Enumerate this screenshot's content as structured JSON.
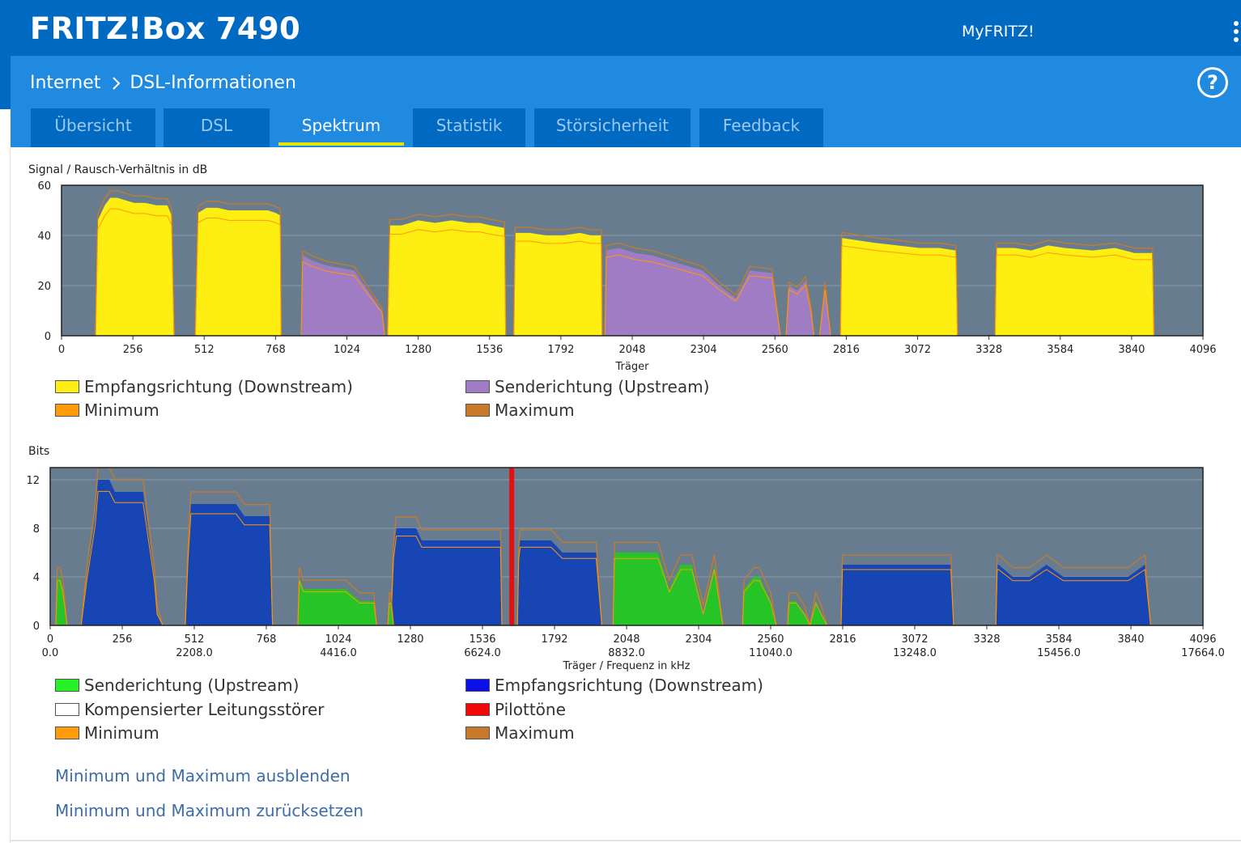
{
  "header": {
    "brand": "FRITZ!Box 7490",
    "myfritz": "MyFRITZ!",
    "menu_icon": "kebab-menu-icon"
  },
  "breadcrumb": {
    "parent": "Internet",
    "current": "DSL-Informationen",
    "help": "?"
  },
  "tabs": [
    {
      "label": "Übersicht",
      "active": false
    },
    {
      "label": "DSL",
      "active": false
    },
    {
      "label": "Spektrum",
      "active": true
    },
    {
      "label": "Statistik",
      "active": false
    },
    {
      "label": "Störsicherheit",
      "active": false
    },
    {
      "label": "Feedback",
      "active": false
    }
  ],
  "colors": {
    "header": "#0069c2",
    "panel": "#1f8ae0",
    "plot_bg": "#687c90",
    "downstream_snr": "#ffee12",
    "upstream_snr": "#a07cc4",
    "bits_upstream": "#26c426",
    "bits_downstream": "#1845b4",
    "pilot": "#e60f0f",
    "min": "#ff9a08",
    "max": "#c87a2a",
    "link": "#3d6ca8"
  },
  "chart_data": [
    {
      "type": "area",
      "title": "Signal / Rausch-Verhältnis in dB",
      "xlabel": "Träger",
      "xlim": [
        0,
        4096
      ],
      "ylim": [
        0,
        60
      ],
      "xticks": [
        "0",
        "256",
        "512",
        "768",
        "1024",
        "1280",
        "1536",
        "1792",
        "2048",
        "2304",
        "2560",
        "2816",
        "3072",
        "3328",
        "3584",
        "3840",
        "4096"
      ],
      "yticks": [
        "0",
        "20",
        "40",
        "60"
      ],
      "series": [
        {
          "name": "Empfangsrichtung (Downstream)",
          "bands": [
            {
              "x": [
                122,
                130,
                155,
                175,
                200,
                230,
                260,
                300,
                340,
                380,
                395,
                400,
                404
              ],
              "y": [
                0,
                46,
                52,
                55,
                55,
                54,
                53,
                53,
                52,
                52,
                48,
                20,
                0
              ]
            },
            {
              "x": [
                480,
                490,
                520,
                560,
                600,
                640,
                700,
                740,
                768,
                785,
                788
              ],
              "y": [
                0,
                49,
                51,
                51,
                50,
                50,
                50,
                50,
                49,
                48,
                0
              ]
            },
            {
              "x": [
                1170,
                1178,
                1220,
                1280,
                1340,
                1400,
                1460,
                1500,
                1540,
                1590,
                1594
              ],
              "y": [
                0,
                44,
                44,
                46,
                45,
                46,
                45,
                45,
                44,
                43,
                0
              ]
            },
            {
              "x": [
                1623,
                1628,
                1680,
                1740,
                1800,
                1860,
                1900,
                1937,
                1940
              ],
              "y": [
                0,
                41,
                41,
                40,
                40,
                41,
                40,
                40,
                0
              ]
            },
            {
              "x": [
                2795,
                2800,
                2860,
                2920,
                3000,
                3080,
                3150,
                3210,
                3215
              ],
              "y": [
                0,
                39,
                38,
                37,
                36,
                35,
                35,
                34,
                0
              ]
            },
            {
              "x": [
                3350,
                3355,
                3420,
                3480,
                3540,
                3600,
                3700,
                3780,
                3850,
                3915,
                3920
              ],
              "y": [
                0,
                35,
                35,
                34,
                36,
                35,
                34,
                35,
                33,
                33,
                0
              ]
            }
          ]
        },
        {
          "name": "Senderichtung (Upstream)",
          "bands": [
            {
              "x": [
                860,
                865,
                900,
                950,
                1000,
                1050,
                1100,
                1150,
                1160
              ],
              "y": [
                0,
                32,
                30,
                28,
                27,
                26,
                18,
                10,
                0
              ]
            },
            {
              "x": [
                1950,
                1955,
                2000,
                2060,
                2120,
                2180,
                2240,
                2300,
                2360,
                2420,
                2470,
                2550,
                2580
              ],
              "y": [
                0,
                34,
                35,
                33,
                32,
                30,
                28,
                26,
                20,
                15,
                26,
                25,
                0
              ]
            },
            {
              "x": [
                2600,
                2610,
                2640,
                2670,
                2690,
                2700,
                2720,
                2740,
                2760
              ],
              "y": [
                0,
                20,
                18,
                22,
                10,
                0,
                0,
                20,
                0
              ]
            }
          ]
        }
      ],
      "legend": [
        "Empfangsrichtung (Downstream)",
        "Senderichtung (Upstream)",
        "Minimum",
        "Maximum"
      ]
    },
    {
      "type": "area",
      "title": "Bits",
      "xlabel": "Träger / Frequenz in kHz",
      "xlim": [
        0,
        4096
      ],
      "ylim": [
        0,
        13
      ],
      "xticks": [
        "0",
        "256",
        "512",
        "768",
        "1024",
        "1280",
        "1536",
        "1792",
        "2048",
        "2304",
        "2560",
        "2816",
        "3072",
        "3328",
        "3584",
        "3840",
        "4096"
      ],
      "xticks2": [
        "0.0",
        "2208.0",
        "4416.0",
        "6624.0",
        "8832.0",
        "11040.0",
        "13248.0",
        "15456.0",
        "17664.0"
      ],
      "yticks": [
        "0",
        "4",
        "8",
        "12"
      ],
      "series": [
        {
          "name": "Empfangsrichtung (Downstream)",
          "bands": [
            {
              "x": [
                110,
                130,
                160,
                170,
                200,
                210,
                230,
                260,
                290,
                300,
                330,
                370,
                380,
                400
              ],
              "y": [
                0,
                4,
                9,
                12,
                12,
                12,
                11,
                11,
                11,
                11,
                11,
                4,
                1,
                0
              ]
            },
            {
              "x": [
                480,
                490,
                500,
                520,
                560,
                600,
                660,
                690,
                720,
                740,
                760,
                780,
                790
              ],
              "y": [
                0,
                6,
                10,
                10,
                10,
                10,
                10,
                9,
                9,
                9,
                9,
                9,
                0
              ]
            },
            {
              "x": [
                1210,
                1220,
                1230,
                1280,
                1300,
                1320,
                1340,
                1400,
                1460,
                1500,
                1540,
                1570,
                1600,
                1605
              ],
              "y": [
                0,
                6,
                8,
                8,
                8,
                7,
                7,
                7,
                7,
                7,
                7,
                7,
                7,
                0
              ]
            },
            {
              "x": [
                1660,
                1665,
                1670,
                1720,
                1780,
                1820,
                1850,
                1900,
                1940,
                1960
              ],
              "y": [
                0,
                6,
                7,
                7,
                7,
                6,
                6,
                6,
                6,
                0
              ]
            },
            {
              "x": [
                2810,
                2815,
                2820,
                2880,
                2960,
                3040,
                3120,
                3200,
                3210
              ],
              "y": [
                0,
                5,
                5,
                5,
                5,
                5,
                5,
                5,
                0
              ]
            },
            {
              "x": [
                3360,
                3365,
                3370,
                3420,
                3480,
                3540,
                3600,
                3680,
                3760,
                3830,
                3890,
                3910
              ],
              "y": [
                0,
                5,
                5,
                4,
                4,
                5,
                4,
                4,
                4,
                4,
                5,
                0
              ]
            }
          ]
        },
        {
          "name": "Senderichtung (Upstream)",
          "bands": [
            {
              "x": [
                20,
                25,
                35,
                45,
                60
              ],
              "y": [
                0,
                4,
                4,
                3,
                0
              ]
            },
            {
              "x": [
                880,
                885,
                900,
                950,
                1000,
                1050,
                1100,
                1150,
                1160
              ],
              "y": [
                0,
                4,
                3,
                3,
                3,
                3,
                2,
                2,
                0
              ]
            },
            {
              "x": [
                1200,
                1205,
                1210,
                1220
              ],
              "y": [
                0,
                2,
                2,
                0
              ]
            },
            {
              "x": [
                2000,
                2005,
                2040,
                2080,
                2120,
                2160,
                2200,
                2240,
                2280,
                2320,
                2360,
                2390
              ],
              "y": [
                0,
                6,
                6,
                6,
                6,
                6,
                3,
                5,
                5,
                1,
                5,
                0
              ]
            },
            {
              "x": [
                2460,
                2465,
                2500,
                2520,
                2540,
                2560,
                2580
              ],
              "y": [
                0,
                3,
                4,
                4,
                3,
                2,
                0
              ]
            },
            {
              "x": [
                2620,
                2625,
                2650,
                2680,
                2700,
                2720,
                2740,
                2760
              ],
              "y": [
                0,
                2,
                2,
                1,
                0,
                2,
                1,
                0
              ]
            }
          ]
        },
        {
          "name": "Pilottöne",
          "x": 1640
        }
      ],
      "legend": [
        "Senderichtung (Upstream)",
        "Empfangsrichtung (Downstream)",
        "Kompensierter Leitungsstörer",
        "Pilottöne",
        "Minimum",
        "Maximum"
      ]
    }
  ],
  "links": {
    "hide": "Minimum und Maximum ausblenden",
    "reset": "Minimum und Maximum zurücksetzen"
  }
}
